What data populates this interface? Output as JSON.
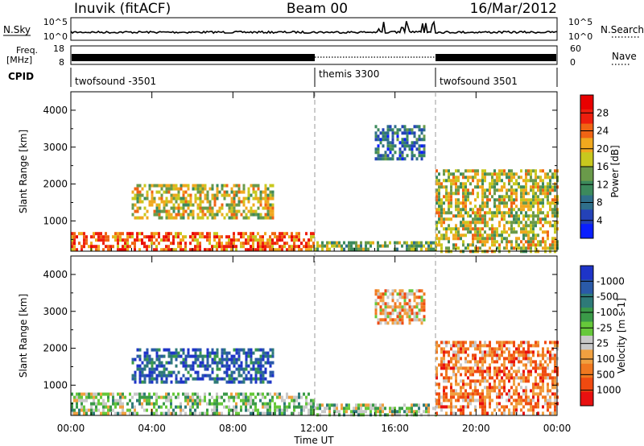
{
  "header": {
    "title_left": "Inuvik (fitACF)",
    "title_center": "Beam 00",
    "title_right": "16/Mar/2012"
  },
  "summary": {
    "nsky_label": "N.Sky",
    "nsearch_label": "N.Search",
    "noise_ticks_left": [
      "10^5",
      "10^0"
    ],
    "noise_ticks_right": [
      "10^5",
      "10^0"
    ],
    "freq_label": "Freq.",
    "freq_unit": "[MHz]",
    "freq_ticks": [
      "18",
      "8"
    ],
    "nave_label": "Nave",
    "nave_ticks": [
      "60",
      "0"
    ],
    "cpid_label": "CPID",
    "cpid_segments": [
      {
        "label": "twofsound -3501",
        "start_hour": 0
      },
      {
        "label": "themis 3300",
        "start_hour": 12
      },
      {
        "label": "twofsound 3501",
        "start_hour": 18
      }
    ]
  },
  "colors": {
    "power_scale": [
      "#0a1fff",
      "#2442b8",
      "#2f6f8a",
      "#3c8a5c",
      "#6a9a4a",
      "#c8c81e",
      "#f0a81e",
      "#f06414",
      "#ee1e0e",
      "#e80000"
    ],
    "velocity_scale": [
      "#1e34c8",
      "#2a5aa8",
      "#2e7a78",
      "#3a9a48",
      "#66c83a",
      "#c8c8c8",
      "#f0a040",
      "#f07820",
      "#f04a10",
      "#e81010"
    ]
  },
  "chart_data": [
    {
      "type": "heatmap",
      "panel": "power",
      "xlabel": "",
      "ylabel": "Slant Range [km]",
      "xlim": [
        0,
        24
      ],
      "ylim": [
        180,
        4500
      ],
      "y_ticks": [
        1000,
        2000,
        3000,
        4000
      ],
      "x_ticks": [
        "00:00",
        "04:00",
        "08:00",
        "12:00",
        "16:00",
        "20:00",
        "00:00"
      ],
      "colorbar_label": "Power [dB]",
      "colorbar_ticks": [
        "4",
        "8",
        "12",
        "16",
        "20",
        "24",
        "28"
      ],
      "regions": [
        {
          "x": [
            0,
            12
          ],
          "y": [
            200,
            700
          ],
          "level": 7
        },
        {
          "x": [
            3,
            10
          ],
          "y": [
            1100,
            2000
          ],
          "level": 5
        },
        {
          "x": [
            12,
            18
          ],
          "y": [
            200,
            450
          ],
          "level": 4
        },
        {
          "x": [
            18,
            24
          ],
          "y": [
            200,
            2400
          ],
          "level": 5
        },
        {
          "x": [
            15,
            17.5
          ],
          "y": [
            2700,
            3600
          ],
          "level": 2
        }
      ]
    },
    {
      "type": "heatmap",
      "panel": "velocity",
      "xlabel": "Time UT",
      "ylabel": "Slant Range [km]",
      "xlim": [
        0,
        24
      ],
      "ylim": [
        180,
        4500
      ],
      "y_ticks": [
        1000,
        2000,
        3000,
        4000
      ],
      "x_ticks": [
        "00:00",
        "04:00",
        "08:00",
        "12:00",
        "16:00",
        "20:00",
        "00:00"
      ],
      "colorbar_label": "Velocity [m s-1]",
      "colorbar_ticks": [
        "1000",
        "500",
        "100",
        "25",
        "-25",
        "-100",
        "-500",
        "-1000"
      ],
      "regions": [
        {
          "x": [
            0,
            12
          ],
          "y": [
            200,
            800
          ],
          "level": 4
        },
        {
          "x": [
            3,
            10
          ],
          "y": [
            1100,
            2000
          ],
          "level": 1
        },
        {
          "x": [
            12,
            18
          ],
          "y": [
            200,
            500
          ],
          "level": 4
        },
        {
          "x": [
            18,
            24
          ],
          "y": [
            200,
            2200
          ],
          "level": 7
        },
        {
          "x": [
            15,
            17.5
          ],
          "y": [
            2700,
            3600
          ],
          "level": 6
        }
      ]
    }
  ]
}
